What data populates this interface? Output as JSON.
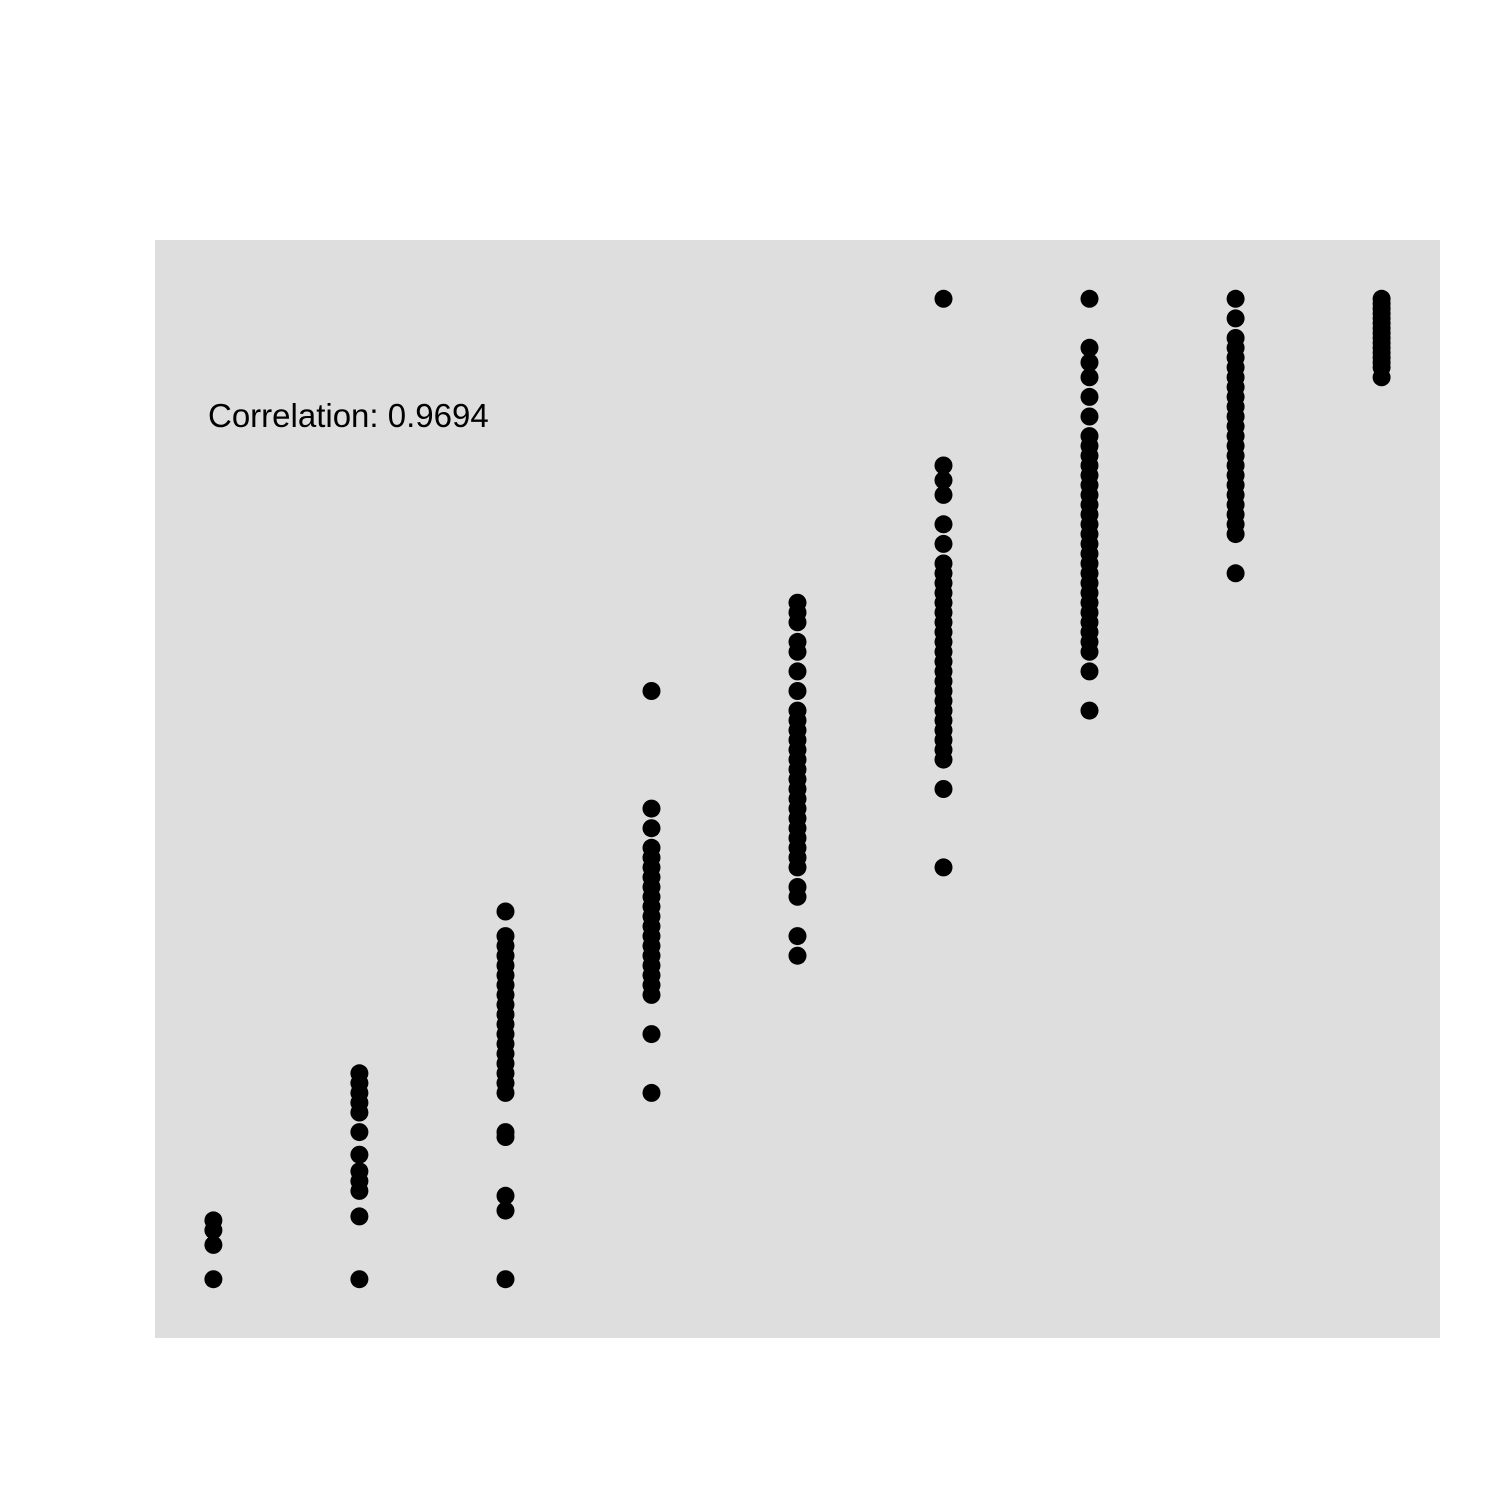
{
  "chart_data": {
    "type": "scatter",
    "title": "",
    "xlabel": "",
    "ylabel": "",
    "grid": false,
    "legend": "none",
    "annotation": "Correlation: 0.9694",
    "xlim": [
      0.6,
      9.4
    ],
    "ylim": [
      -0.06,
      1.06
    ],
    "colors": {
      "panel": "#dedede",
      "point": "#000000",
      "text": "#000000"
    },
    "points": [
      {
        "x": 1,
        "y": 0.0
      },
      {
        "x": 1,
        "y": 0.035
      },
      {
        "x": 1,
        "y": 0.05
      },
      {
        "x": 1,
        "y": 0.06
      },
      {
        "x": 2,
        "y": 0.0
      },
      {
        "x": 2,
        "y": 0.064
      },
      {
        "x": 2,
        "y": 0.09
      },
      {
        "x": 2,
        "y": 0.1
      },
      {
        "x": 2,
        "y": 0.11
      },
      {
        "x": 2,
        "y": 0.127
      },
      {
        "x": 2,
        "y": 0.15
      },
      {
        "x": 2,
        "y": 0.17
      },
      {
        "x": 2,
        "y": 0.18
      },
      {
        "x": 2,
        "y": 0.19
      },
      {
        "x": 2,
        "y": 0.2
      },
      {
        "x": 2,
        "y": 0.21
      },
      {
        "x": 3,
        "y": 0.0
      },
      {
        "x": 3,
        "y": 0.07
      },
      {
        "x": 3,
        "y": 0.085
      },
      {
        "x": 3,
        "y": 0.145
      },
      {
        "x": 3,
        "y": 0.15
      },
      {
        "x": 3,
        "y": 0.19
      },
      {
        "x": 3,
        "y": 0.2
      },
      {
        "x": 3,
        "y": 0.21
      },
      {
        "x": 3,
        "y": 0.22
      },
      {
        "x": 3,
        "y": 0.23
      },
      {
        "x": 3,
        "y": 0.24
      },
      {
        "x": 3,
        "y": 0.25
      },
      {
        "x": 3,
        "y": 0.26
      },
      {
        "x": 3,
        "y": 0.27
      },
      {
        "x": 3,
        "y": 0.28
      },
      {
        "x": 3,
        "y": 0.29
      },
      {
        "x": 3,
        "y": 0.3
      },
      {
        "x": 3,
        "y": 0.31
      },
      {
        "x": 3,
        "y": 0.32
      },
      {
        "x": 3,
        "y": 0.33
      },
      {
        "x": 3,
        "y": 0.34
      },
      {
        "x": 3,
        "y": 0.35
      },
      {
        "x": 3,
        "y": 0.375
      },
      {
        "x": 4,
        "y": 0.19
      },
      {
        "x": 4,
        "y": 0.25
      },
      {
        "x": 4,
        "y": 0.29
      },
      {
        "x": 4,
        "y": 0.3
      },
      {
        "x": 4,
        "y": 0.31
      },
      {
        "x": 4,
        "y": 0.32
      },
      {
        "x": 4,
        "y": 0.33
      },
      {
        "x": 4,
        "y": 0.34
      },
      {
        "x": 4,
        "y": 0.35
      },
      {
        "x": 4,
        "y": 0.36
      },
      {
        "x": 4,
        "y": 0.37
      },
      {
        "x": 4,
        "y": 0.38
      },
      {
        "x": 4,
        "y": 0.39
      },
      {
        "x": 4,
        "y": 0.4
      },
      {
        "x": 4,
        "y": 0.41
      },
      {
        "x": 4,
        "y": 0.42
      },
      {
        "x": 4,
        "y": 0.43
      },
      {
        "x": 4,
        "y": 0.44
      },
      {
        "x": 4,
        "y": 0.46
      },
      {
        "x": 4,
        "y": 0.48
      },
      {
        "x": 4,
        "y": 0.6
      },
      {
        "x": 5,
        "y": 0.33
      },
      {
        "x": 5,
        "y": 0.35
      },
      {
        "x": 5,
        "y": 0.39
      },
      {
        "x": 5,
        "y": 0.4
      },
      {
        "x": 5,
        "y": 0.42
      },
      {
        "x": 5,
        "y": 0.43
      },
      {
        "x": 5,
        "y": 0.44
      },
      {
        "x": 5,
        "y": 0.45
      },
      {
        "x": 5,
        "y": 0.46
      },
      {
        "x": 5,
        "y": 0.47
      },
      {
        "x": 5,
        "y": 0.48
      },
      {
        "x": 5,
        "y": 0.49
      },
      {
        "x": 5,
        "y": 0.5
      },
      {
        "x": 5,
        "y": 0.51
      },
      {
        "x": 5,
        "y": 0.52
      },
      {
        "x": 5,
        "y": 0.53
      },
      {
        "x": 5,
        "y": 0.54
      },
      {
        "x": 5,
        "y": 0.55
      },
      {
        "x": 5,
        "y": 0.56
      },
      {
        "x": 5,
        "y": 0.57
      },
      {
        "x": 5,
        "y": 0.58
      },
      {
        "x": 5,
        "y": 0.6
      },
      {
        "x": 5,
        "y": 0.62
      },
      {
        "x": 5,
        "y": 0.64
      },
      {
        "x": 5,
        "y": 0.65
      },
      {
        "x": 5,
        "y": 0.67
      },
      {
        "x": 5,
        "y": 0.68
      },
      {
        "x": 5,
        "y": 0.69
      },
      {
        "x": 6,
        "y": 0.42
      },
      {
        "x": 6,
        "y": 0.5
      },
      {
        "x": 6,
        "y": 0.53
      },
      {
        "x": 6,
        "y": 0.54
      },
      {
        "x": 6,
        "y": 0.55
      },
      {
        "x": 6,
        "y": 0.56
      },
      {
        "x": 6,
        "y": 0.57
      },
      {
        "x": 6,
        "y": 0.58
      },
      {
        "x": 6,
        "y": 0.59
      },
      {
        "x": 6,
        "y": 0.6
      },
      {
        "x": 6,
        "y": 0.61
      },
      {
        "x": 6,
        "y": 0.62
      },
      {
        "x": 6,
        "y": 0.63
      },
      {
        "x": 6,
        "y": 0.64
      },
      {
        "x": 6,
        "y": 0.65
      },
      {
        "x": 6,
        "y": 0.66
      },
      {
        "x": 6,
        "y": 0.67
      },
      {
        "x": 6,
        "y": 0.68
      },
      {
        "x": 6,
        "y": 0.69
      },
      {
        "x": 6,
        "y": 0.7
      },
      {
        "x": 6,
        "y": 0.71
      },
      {
        "x": 6,
        "y": 0.72
      },
      {
        "x": 6,
        "y": 0.73
      },
      {
        "x": 6,
        "y": 0.75
      },
      {
        "x": 6,
        "y": 0.77
      },
      {
        "x": 6,
        "y": 0.8
      },
      {
        "x": 6,
        "y": 0.815
      },
      {
        "x": 6,
        "y": 0.83
      },
      {
        "x": 6,
        "y": 1.0
      },
      {
        "x": 7,
        "y": 0.58
      },
      {
        "x": 7,
        "y": 0.62
      },
      {
        "x": 7,
        "y": 0.64
      },
      {
        "x": 7,
        "y": 0.65
      },
      {
        "x": 7,
        "y": 0.66
      },
      {
        "x": 7,
        "y": 0.67
      },
      {
        "x": 7,
        "y": 0.68
      },
      {
        "x": 7,
        "y": 0.69
      },
      {
        "x": 7,
        "y": 0.7
      },
      {
        "x": 7,
        "y": 0.71
      },
      {
        "x": 7,
        "y": 0.72
      },
      {
        "x": 7,
        "y": 0.73
      },
      {
        "x": 7,
        "y": 0.74
      },
      {
        "x": 7,
        "y": 0.75
      },
      {
        "x": 7,
        "y": 0.76
      },
      {
        "x": 7,
        "y": 0.77
      },
      {
        "x": 7,
        "y": 0.78
      },
      {
        "x": 7,
        "y": 0.79
      },
      {
        "x": 7,
        "y": 0.8
      },
      {
        "x": 7,
        "y": 0.81
      },
      {
        "x": 7,
        "y": 0.82
      },
      {
        "x": 7,
        "y": 0.83
      },
      {
        "x": 7,
        "y": 0.84
      },
      {
        "x": 7,
        "y": 0.85
      },
      {
        "x": 7,
        "y": 0.86
      },
      {
        "x": 7,
        "y": 0.88
      },
      {
        "x": 7,
        "y": 0.9
      },
      {
        "x": 7,
        "y": 0.92
      },
      {
        "x": 7,
        "y": 0.935
      },
      {
        "x": 7,
        "y": 0.95
      },
      {
        "x": 7,
        "y": 1.0
      },
      {
        "x": 8,
        "y": 0.72
      },
      {
        "x": 8,
        "y": 0.76
      },
      {
        "x": 8,
        "y": 0.77
      },
      {
        "x": 8,
        "y": 0.78
      },
      {
        "x": 8,
        "y": 0.79
      },
      {
        "x": 8,
        "y": 0.8
      },
      {
        "x": 8,
        "y": 0.81
      },
      {
        "x": 8,
        "y": 0.82
      },
      {
        "x": 8,
        "y": 0.83
      },
      {
        "x": 8,
        "y": 0.84
      },
      {
        "x": 8,
        "y": 0.85
      },
      {
        "x": 8,
        "y": 0.86
      },
      {
        "x": 8,
        "y": 0.87
      },
      {
        "x": 8,
        "y": 0.88
      },
      {
        "x": 8,
        "y": 0.89
      },
      {
        "x": 8,
        "y": 0.9
      },
      {
        "x": 8,
        "y": 0.91
      },
      {
        "x": 8,
        "y": 0.92
      },
      {
        "x": 8,
        "y": 0.93
      },
      {
        "x": 8,
        "y": 0.94
      },
      {
        "x": 8,
        "y": 0.95
      },
      {
        "x": 8,
        "y": 0.96
      },
      {
        "x": 8,
        "y": 0.98
      },
      {
        "x": 8,
        "y": 1.0
      },
      {
        "x": 9,
        "y": 0.92
      },
      {
        "x": 9,
        "y": 0.93
      },
      {
        "x": 9,
        "y": 0.935
      },
      {
        "x": 9,
        "y": 0.94
      },
      {
        "x": 9,
        "y": 0.945
      },
      {
        "x": 9,
        "y": 0.95
      },
      {
        "x": 9,
        "y": 0.955
      },
      {
        "x": 9,
        "y": 0.96
      },
      {
        "x": 9,
        "y": 0.965
      },
      {
        "x": 9,
        "y": 0.97
      },
      {
        "x": 9,
        "y": 0.975
      },
      {
        "x": 9,
        "y": 0.98
      },
      {
        "x": 9,
        "y": 0.985
      },
      {
        "x": 9,
        "y": 0.99
      },
      {
        "x": 9,
        "y": 0.995
      },
      {
        "x": 9,
        "y": 1.0
      }
    ]
  }
}
